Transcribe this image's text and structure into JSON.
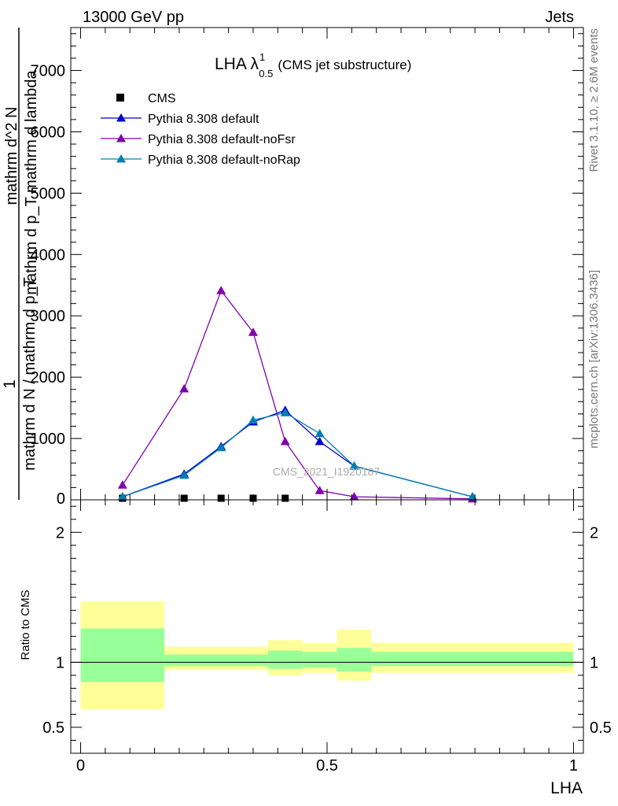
{
  "header": {
    "energy_label": "13000 GeV pp",
    "process_label": "Jets"
  },
  "side": {
    "rivet_label": "Rivet 3.1.10, ≥ 2.6M events",
    "mcplots_label": "mcplots.cern.ch [arXiv:1306.3436]"
  },
  "watermark": "CMS_2021_I1920187",
  "colors": {
    "cms": "#000000",
    "default": "#0000cc",
    "noFsr": "#8000b0",
    "noRap": "#0080b0",
    "band_inner": "#99ff99",
    "band_outer": "#ffff99"
  },
  "chart_data": [
    {
      "type": "line",
      "title": "LHA λ",
      "title_superscript": "1",
      "title_subscript": "0.5",
      "title_suffix": "(CMS jet substructure)",
      "ylabel_numerator": "1",
      "ylabel_denominator": "mathrm d N / mathrm d p_T",
      "ylabel_right_top": "mathrm d^2 N",
      "ylabel_right_bottom": "mathrm d p_T mathrm d lambda",
      "ylim": [
        0,
        7700
      ],
      "yticks": [
        {
          "v": 1000,
          "label": "1000"
        },
        {
          "v": 2000,
          "label": "2000"
        },
        {
          "v": 3000,
          "label": "3000"
        },
        {
          "v": 4000,
          "label": "4000"
        },
        {
          "v": 5000,
          "label": "5000"
        },
        {
          "v": 6000,
          "label": "6000"
        },
        {
          "v": 7000,
          "label": "7000"
        }
      ],
      "xlim": [
        -0.02,
        1.02
      ],
      "legend_position": "top-left",
      "series": [
        {
          "name": "CMS",
          "key": "cms",
          "marker": "square",
          "x": [
            0.085,
            0.21,
            0.285,
            0.35,
            0.415
          ],
          "y": [
            10,
            10,
            10,
            10,
            10
          ]
        },
        {
          "name": "Pythia 8.308 default",
          "key": "default",
          "marker": "triangle",
          "x": [
            0.085,
            0.21,
            0.285,
            0.35,
            0.415,
            0.485,
            0.555,
            0.795
          ],
          "y": [
            50,
            420,
            870,
            1270,
            1460,
            950,
            550,
            50
          ]
        },
        {
          "name": "Pythia 8.308 default-noFsr",
          "key": "noFsr",
          "marker": "triangle",
          "x": [
            0.085,
            0.21,
            0.285,
            0.35,
            0.415,
            0.485,
            0.555,
            0.795
          ],
          "y": [
            240,
            1810,
            3410,
            2730,
            950,
            150,
            50,
            15
          ]
        },
        {
          "name": "Pythia 8.308 default-noRap",
          "key": "noRap",
          "marker": "triangle",
          "x": [
            0.085,
            0.21,
            0.285,
            0.35,
            0.415,
            0.485,
            0.555,
            0.795
          ],
          "y": [
            50,
            400,
            850,
            1300,
            1420,
            1080,
            550,
            50
          ]
        }
      ]
    },
    {
      "type": "area",
      "ylabel": "Ratio to CMS",
      "xlabel": "LHA",
      "ylim": [
        0.3,
        2.25
      ],
      "xlim": [
        -0.02,
        1.02
      ],
      "yticks": [
        {
          "v": 0.5,
          "label": "0.5"
        },
        {
          "v": 1,
          "label": "1"
        },
        {
          "v": 2,
          "label": "2"
        }
      ],
      "xticks": [
        {
          "v": 0,
          "label": "0"
        },
        {
          "v": 0.5,
          "label": "0.5"
        },
        {
          "v": 1,
          "label": "1"
        }
      ],
      "bins": [
        {
          "x0": 0.0,
          "x1": 0.17,
          "inner": [
            0.85,
            1.26
          ],
          "outer": [
            0.64,
            1.47
          ]
        },
        {
          "x0": 0.17,
          "x1": 0.38,
          "inner": [
            0.97,
            1.06
          ],
          "outer": [
            0.94,
            1.12
          ]
        },
        {
          "x0": 0.38,
          "x1": 0.45,
          "inner": [
            0.95,
            1.09
          ],
          "outer": [
            0.9,
            1.17
          ]
        },
        {
          "x0": 0.45,
          "x1": 0.52,
          "inner": [
            0.96,
            1.08
          ],
          "outer": [
            0.92,
            1.15
          ]
        },
        {
          "x0": 0.52,
          "x1": 0.59,
          "inner": [
            0.93,
            1.11
          ],
          "outer": [
            0.86,
            1.25
          ]
        },
        {
          "x0": 0.59,
          "x1": 1.0,
          "inner": [
            0.97,
            1.08
          ],
          "outer": [
            0.92,
            1.15
          ]
        }
      ]
    }
  ]
}
